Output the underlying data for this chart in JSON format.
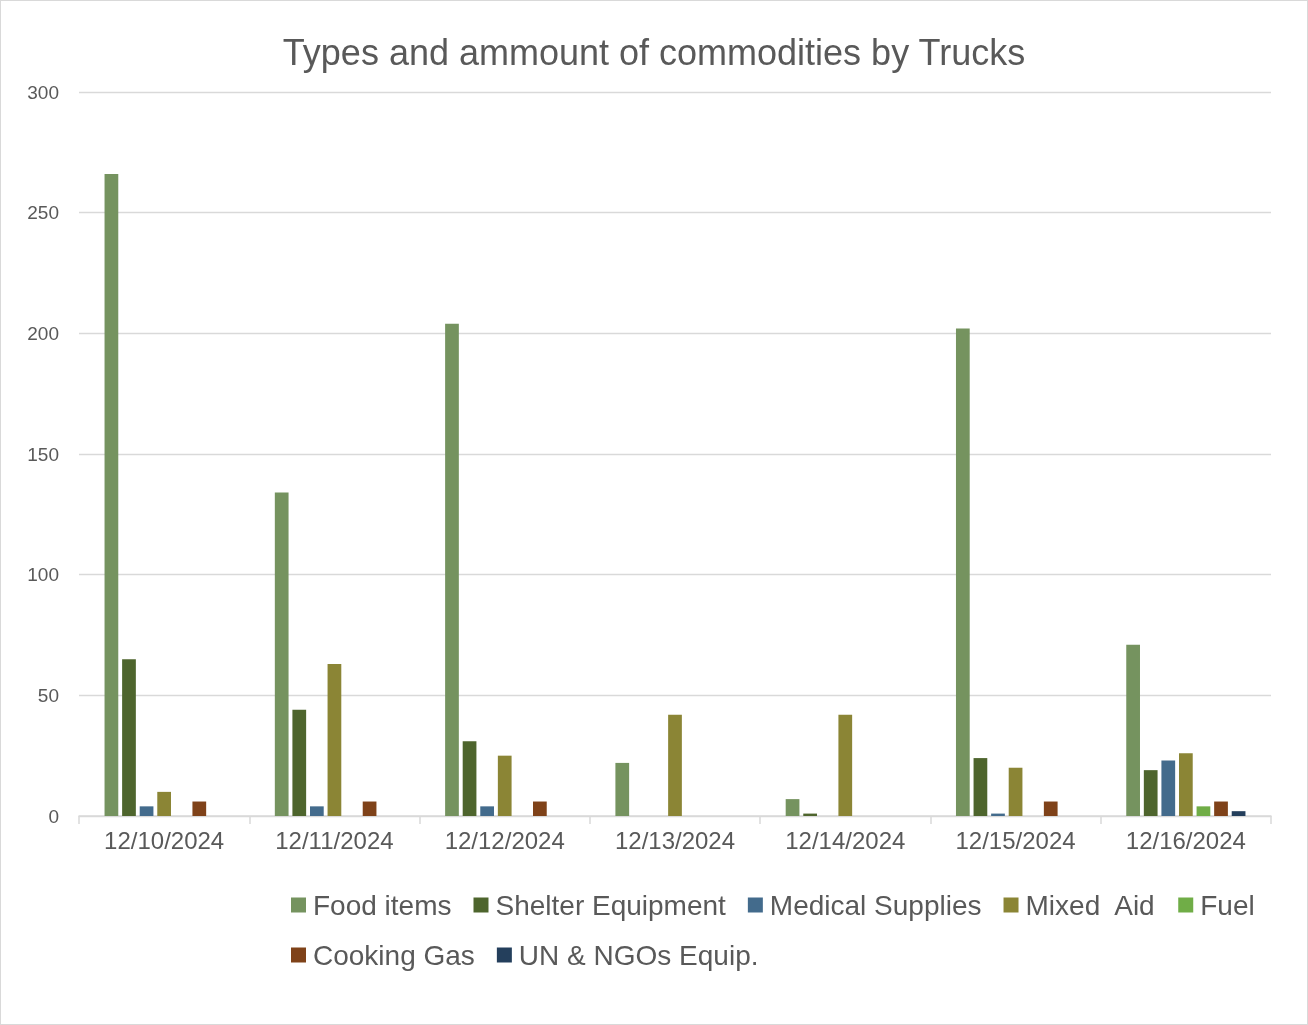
{
  "chart_data": {
    "type": "bar",
    "title": "Types and ammount of commodities by Trucks",
    "categories": [
      "12/10/2024",
      "12/11/2024",
      "12/12/2024",
      "12/13/2024",
      "12/14/2024",
      "12/15/2024",
      "12/16/2024"
    ],
    "series": [
      {
        "name": "Food items",
        "color": "#75935f",
        "values": [
          266,
          134,
          204,
          22,
          7,
          202,
          71
        ]
      },
      {
        "name": "Shelter Equipment",
        "color": "#4e652d",
        "values": [
          65,
          44,
          31,
          null,
          1,
          24,
          19
        ]
      },
      {
        "name": "Medical Supplies",
        "color": "#436b8c",
        "values": [
          4,
          4,
          4,
          null,
          null,
          1,
          23
        ]
      },
      {
        "name": "Mixed  Aid",
        "color": "#8b8535",
        "values": [
          10,
          63,
          25,
          42,
          42,
          20,
          26
        ]
      },
      {
        "name": "Fuel",
        "color": "#70ad47",
        "values": [
          null,
          null,
          null,
          null,
          null,
          null,
          4
        ]
      },
      {
        "name": "Cooking Gas",
        "color": "#7f4219",
        "values": [
          6,
          6,
          6,
          null,
          null,
          6,
          6
        ]
      },
      {
        "name": "UN & NGOs Equip.",
        "color": "#243f5c",
        "values": [
          null,
          null,
          null,
          null,
          null,
          null,
          2
        ]
      }
    ],
    "ylim": [
      0,
      300
    ],
    "yticks": [
      0,
      50,
      100,
      150,
      200,
      250,
      300
    ],
    "grid": "y",
    "legend": "bottom"
  }
}
